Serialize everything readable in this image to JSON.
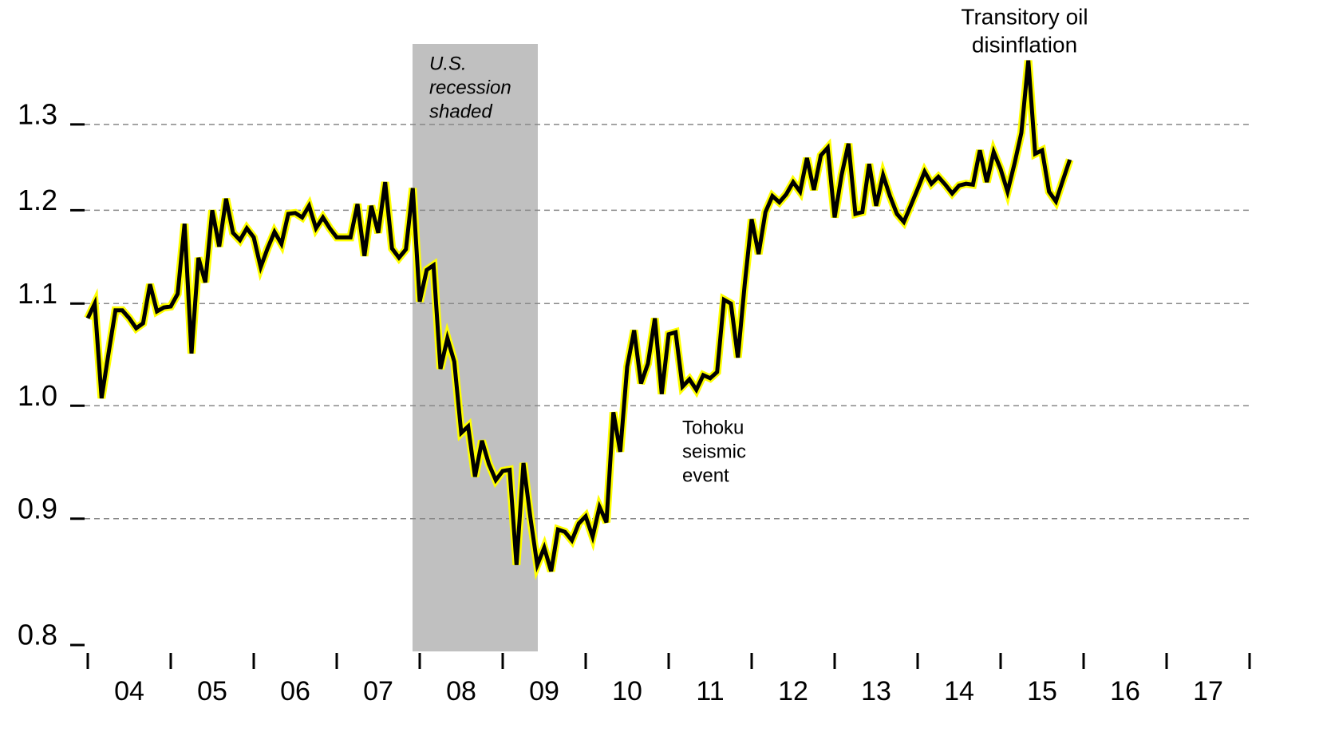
{
  "chart_data": {
    "type": "line",
    "x_labels": [
      "04",
      "05",
      "06",
      "07",
      "08",
      "09",
      "10",
      "11",
      "12",
      "13",
      "14",
      "15",
      "16",
      "17"
    ],
    "values": [
      1.085,
      1.1,
      1.007,
      1.05,
      1.093,
      1.093,
      1.085,
      1.075,
      1.08,
      1.12,
      1.092,
      1.096,
      1.097,
      1.11,
      1.185,
      1.05,
      1.148,
      1.122,
      1.2,
      1.16,
      1.213,
      1.175,
      1.167,
      1.18,
      1.17,
      1.138,
      1.158,
      1.176,
      1.163,
      1.196,
      1.197,
      1.192,
      1.205,
      1.18,
      1.192,
      1.18,
      1.17,
      1.17,
      1.17,
      1.207,
      1.15,
      1.205,
      1.175,
      1.232,
      1.158,
      1.148,
      1.157,
      1.225,
      1.102,
      1.135,
      1.14,
      1.035,
      1.065,
      1.042,
      0.975,
      0.981,
      0.936,
      0.968,
      0.947,
      0.933,
      0.941,
      0.942,
      0.862,
      0.948,
      0.901,
      0.862,
      0.876,
      0.857,
      0.891,
      0.889,
      0.882,
      0.896,
      0.902,
      0.885,
      0.91,
      0.897,
      0.994,
      0.958,
      1.037,
      1.073,
      1.021,
      1.04,
      1.085,
      1.011,
      1.069,
      1.071,
      1.018,
      1.025,
      1.015,
      1.029,
      1.026,
      1.032,
      1.104,
      1.1,
      1.046,
      1.12,
      1.19,
      1.152,
      1.198,
      1.216,
      1.209,
      1.218,
      1.232,
      1.221,
      1.26,
      1.223,
      1.263,
      1.272,
      1.192,
      1.24,
      1.277,
      1.196,
      1.198,
      1.253,
      1.205,
      1.24,
      1.216,
      1.196,
      1.187,
      1.205,
      1.224,
      1.244,
      1.23,
      1.238,
      1.229,
      1.219,
      1.228,
      1.23,
      1.229,
      1.269,
      1.232,
      1.267,
      1.247,
      1.221,
      1.253,
      1.29,
      1.38,
      1.265,
      1.269,
      1.221,
      1.21,
      1.234,
      1.258
    ],
    "color": "#000000",
    "outline_color": "#ffff00",
    "ylim": [
      0.8,
      1.46
    ],
    "yticks": [
      0.8,
      0.9,
      {
        "value": 1,
        "label": "1.0"
      },
      1.1,
      1.2,
      1.3
    ],
    "log_scale": true,
    "grid": true,
    "annotations": {
      "recession": [
        "U.S.",
        "recession",
        "shaded"
      ],
      "tohoku": [
        "Tohoku",
        "seismic",
        "event"
      ],
      "oil": [
        "Transitory oil",
        "disinflation"
      ]
    }
  }
}
